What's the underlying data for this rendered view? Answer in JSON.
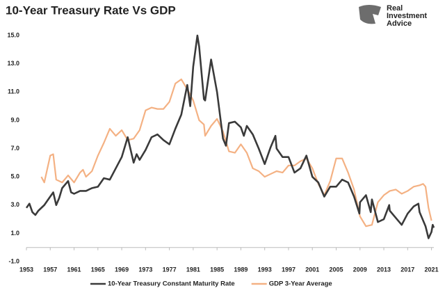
{
  "chart_data": {
    "type": "line",
    "title": "10-Year Treasury Rate Vs GDP",
    "xlim": [
      1953,
      2021.4
    ],
    "ylim": [
      -1,
      15
    ],
    "xticks": [
      1953,
      1957,
      1961,
      1965,
      1969,
      1973,
      1977,
      1981,
      1985,
      1989,
      1993,
      1997,
      2001,
      2005,
      2009,
      2013,
      2017,
      2021
    ],
    "yticks": [
      {
        "value": -1,
        "label": "-1.0"
      },
      {
        "value": 1,
        "label": "1.0"
      },
      {
        "value": 3,
        "label": "3.0"
      },
      {
        "value": 5,
        "label": "5.0"
      },
      {
        "value": 7,
        "label": "7.0"
      },
      {
        "value": 9,
        "label": "9.0"
      },
      {
        "value": 11,
        "label": "11.0"
      },
      {
        "value": 13,
        "label": "13.0"
      },
      {
        "value": 15,
        "label": "15.0"
      }
    ],
    "grid": false,
    "legend": "bottom",
    "series": [
      {
        "name": "10-Year Treasury Constant Maturity Rate",
        "color": "#3a3a3a",
        "x": [
          1953,
          1953.5,
          1954,
          1954.5,
          1955,
          1956,
          1957,
          1957.5,
          1958,
          1958.5,
          1959,
          1960,
          1960.5,
          1961,
          1962,
          1963,
          1964,
          1965,
          1966,
          1967,
          1968,
          1969,
          1970,
          1971,
          1971.5,
          1972,
          1973,
          1974,
          1975,
          1976,
          1977,
          1978,
          1979,
          1980,
          1980.5,
          1981,
          1981.7,
          1982,
          1982.8,
          1983,
          1984,
          1985,
          1986,
          1986.5,
          1987,
          1988,
          1989,
          1989.5,
          1990,
          1991,
          1992,
          1993,
          1994,
          1994.8,
          1995,
          1996,
          1997,
          1998,
          1999,
          2000,
          2001,
          2002,
          2003,
          2004,
          2005,
          2006,
          2007,
          2008,
          2008.9,
          2009,
          2010,
          2010.8,
          2011,
          2012,
          2013,
          2013.9,
          2014,
          2015,
          2016,
          2017,
          2018,
          2018.8,
          2019,
          2019.8,
          2020,
          2020.5,
          2021,
          2021.2,
          2021.4
        ],
        "values": [
          2.8,
          3.1,
          2.5,
          2.3,
          2.6,
          3.0,
          3.6,
          3.9,
          3.0,
          3.5,
          4.2,
          4.7,
          3.9,
          3.8,
          4.0,
          4.0,
          4.2,
          4.3,
          4.9,
          4.8,
          5.6,
          6.4,
          7.8,
          6.0,
          6.6,
          6.2,
          6.9,
          7.8,
          8.0,
          7.6,
          7.3,
          8.4,
          9.4,
          11.5,
          10.0,
          12.8,
          15.0,
          14.2,
          10.5,
          10.4,
          13.3,
          11.0,
          7.7,
          7.2,
          8.8,
          8.9,
          8.5,
          7.9,
          8.6,
          8.0,
          7.0,
          5.9,
          7.1,
          7.9,
          7.0,
          6.4,
          6.4,
          5.3,
          5.6,
          6.5,
          5.0,
          4.6,
          3.6,
          4.3,
          4.3,
          4.8,
          4.6,
          3.6,
          2.4,
          3.2,
          3.7,
          2.5,
          3.4,
          1.8,
          2.0,
          3.0,
          2.6,
          2.1,
          1.6,
          2.4,
          2.9,
          3.1,
          2.5,
          1.7,
          1.5,
          0.65,
          1.1,
          1.6,
          1.4
        ]
      },
      {
        "name": "GDP 3-Year Average",
        "color": "#f4b183",
        "x": [
          1955.5,
          1956,
          1957,
          1957.5,
          1958,
          1959,
          1960,
          1961,
          1962,
          1962.5,
          1963,
          1964,
          1965,
          1966,
          1967,
          1968,
          1969,
          1970,
          1971,
          1972,
          1973,
          1974,
          1975,
          1976,
          1977,
          1978,
          1979,
          1980,
          1981,
          1982,
          1982.8,
          1983,
          1984,
          1985,
          1986,
          1987,
          1988,
          1989,
          1990,
          1991,
          1992,
          1993,
          1994,
          1995,
          1996,
          1997,
          1998,
          1999,
          2000,
          2001,
          2002,
          2003,
          2004,
          2005,
          2006,
          2007,
          2008,
          2009,
          2010,
          2011,
          2012,
          2013,
          2014,
          2015,
          2016,
          2017,
          2018,
          2019,
          2019.6,
          2020,
          2020.5,
          2021
        ],
        "values": [
          5.0,
          4.6,
          6.5,
          6.6,
          4.8,
          4.6,
          5.1,
          4.6,
          5.3,
          5.5,
          5.0,
          5.4,
          6.5,
          7.4,
          8.4,
          7.9,
          8.3,
          7.6,
          7.7,
          8.3,
          9.7,
          9.9,
          9.8,
          9.8,
          10.3,
          11.6,
          11.9,
          11.2,
          10.4,
          9.0,
          8.7,
          7.9,
          8.6,
          9.1,
          8.2,
          6.8,
          6.7,
          7.3,
          6.7,
          5.6,
          5.4,
          5.0,
          5.2,
          5.4,
          5.3,
          5.8,
          5.8,
          6.1,
          6.3,
          5.6,
          4.5,
          3.7,
          4.7,
          6.3,
          6.3,
          5.3,
          4.1,
          2.2,
          1.5,
          1.6,
          3.2,
          3.7,
          4.0,
          4.1,
          3.8,
          4.0,
          4.3,
          4.4,
          4.5,
          4.3,
          2.8,
          1.9
        ]
      }
    ]
  },
  "logo": {
    "lines": [
      "Real",
      "Investment",
      "Advice"
    ]
  }
}
